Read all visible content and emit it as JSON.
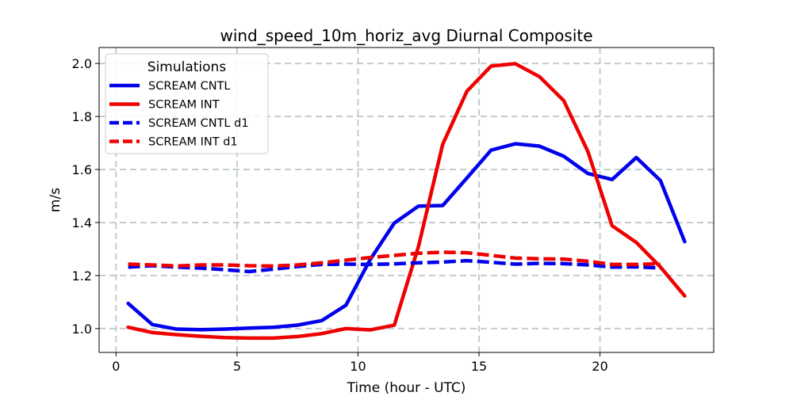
{
  "chart_data": {
    "type": "line",
    "title": "wind_speed_10m_horiz_avg Diurnal Composite",
    "xlabel": "Time (hour - UTC)",
    "ylabel": "m/s",
    "xlim": [
      -0.7,
      24.7
    ],
    "ylim": [
      0.91,
      2.06
    ],
    "xticks": [
      0,
      5,
      10,
      15,
      20
    ],
    "xtick_labels": [
      "0",
      "5",
      "10",
      "15",
      "20"
    ],
    "yticks": [
      1.0,
      1.2,
      1.4,
      1.6,
      1.8,
      2.0
    ],
    "ytick_labels": [
      "1.0",
      "1.2",
      "1.4",
      "1.6",
      "1.8",
      "2.0"
    ],
    "grid": true,
    "legend": {
      "title": "Simulations",
      "placement": "top-left"
    },
    "series": [
      {
        "name": "SCREAM CNTL",
        "color": "#0000ee",
        "dashed": false,
        "x": [
          0.5,
          1.5,
          2.5,
          3.5,
          4.5,
          5.5,
          6.5,
          7.5,
          8.5,
          9.5,
          10.5,
          11.5,
          12.5,
          13.5,
          14.5,
          15.5,
          16.5,
          17.5,
          18.5,
          19.5,
          20.5,
          21.5,
          22.5,
          23.5
        ],
        "y": [
          1.095,
          1.015,
          0.998,
          0.996,
          0.998,
          1.002,
          1.005,
          1.013,
          1.03,
          1.088,
          1.26,
          1.398,
          1.462,
          1.464,
          1.568,
          1.673,
          1.697,
          1.688,
          1.65,
          1.585,
          1.562,
          1.645,
          1.558,
          1.328
        ]
      },
      {
        "name": "SCREAM INT",
        "color": "#ee0000",
        "dashed": false,
        "x": [
          0.5,
          1.5,
          2.5,
          3.5,
          4.5,
          5.5,
          6.5,
          7.5,
          8.5,
          9.5,
          10.5,
          11.5,
          12.5,
          13.5,
          14.5,
          15.5,
          16.5,
          17.5,
          18.5,
          19.5,
          20.5,
          21.5,
          22.5,
          23.5
        ],
        "y": [
          1.005,
          0.985,
          0.977,
          0.971,
          0.966,
          0.964,
          0.964,
          0.97,
          0.981,
          1.0,
          0.995,
          1.013,
          1.31,
          1.695,
          1.895,
          1.99,
          1.999,
          1.95,
          1.86,
          1.668,
          1.388,
          1.325,
          1.232,
          1.123
        ]
      },
      {
        "name": "SCREAM CNTL d1",
        "color": "#0000ee",
        "dashed": true,
        "x": [
          0.5,
          1.5,
          2.5,
          3.5,
          4.5,
          5.5,
          6.5,
          7.5,
          8.5,
          9.5,
          10.5,
          11.5,
          12.5,
          13.5,
          14.5,
          15.5,
          16.5,
          17.5,
          18.5,
          19.5,
          20.5,
          21.5,
          22.5
        ],
        "y": [
          1.232,
          1.237,
          1.232,
          1.228,
          1.222,
          1.215,
          1.224,
          1.234,
          1.242,
          1.243,
          1.242,
          1.244,
          1.248,
          1.251,
          1.256,
          1.25,
          1.243,
          1.246,
          1.245,
          1.24,
          1.232,
          1.233,
          1.228
        ]
      },
      {
        "name": "SCREAM INT d1",
        "color": "#ee0000",
        "dashed": true,
        "x": [
          0.5,
          1.5,
          2.5,
          3.5,
          4.5,
          5.5,
          6.5,
          7.5,
          8.5,
          9.5,
          10.5,
          11.5,
          12.5,
          13.5,
          14.5,
          15.5,
          16.5,
          17.5,
          18.5,
          19.5,
          20.5,
          21.5,
          22.5
        ],
        "y": [
          1.243,
          1.24,
          1.236,
          1.24,
          1.24,
          1.237,
          1.236,
          1.24,
          1.248,
          1.258,
          1.268,
          1.276,
          1.284,
          1.288,
          1.286,
          1.276,
          1.266,
          1.263,
          1.262,
          1.254,
          1.242,
          1.242,
          1.245
        ]
      }
    ]
  }
}
